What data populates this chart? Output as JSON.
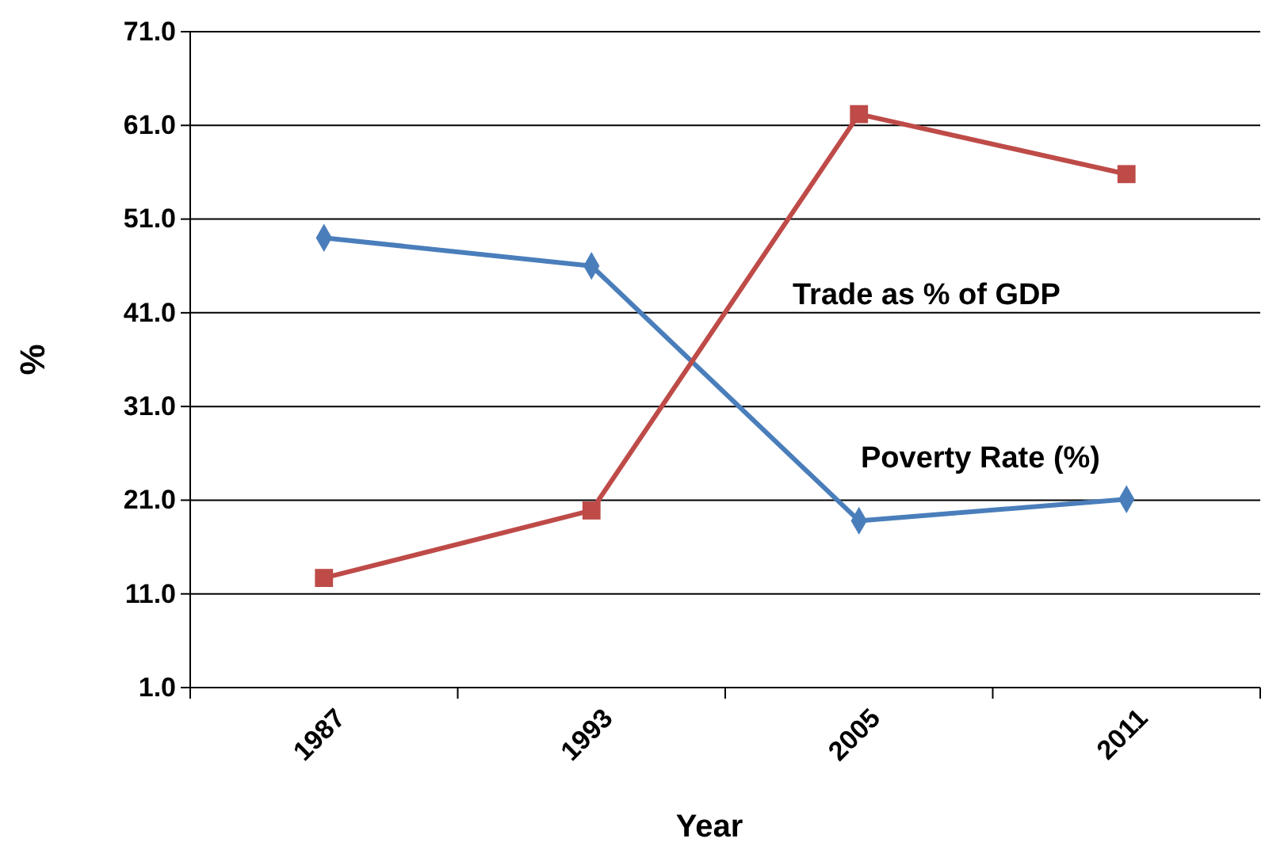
{
  "chart_data": {
    "type": "line",
    "xlabel": "Year",
    "ylabel": "%",
    "categories": [
      "1987",
      "1993",
      "2005",
      "2011"
    ],
    "ylim": [
      1,
      71
    ],
    "yticks": [
      {
        "value": 1,
        "label": "1.0"
      },
      {
        "value": 11,
        "label": "11.0"
      },
      {
        "value": 21,
        "label": "21.0"
      },
      {
        "value": 31,
        "label": "31.0"
      },
      {
        "value": 41,
        "label": "41.0"
      },
      {
        "value": 51,
        "label": "51.0"
      },
      {
        "value": 61,
        "label": "61.0"
      },
      {
        "value": 71,
        "label": "71.0"
      }
    ],
    "grid": "y",
    "legend": false,
    "series": [
      {
        "name": "Poverty Rate (%)",
        "color": "#4a7ebb",
        "marker": "diamond",
        "values": [
          49.0,
          46.0,
          18.8,
          21.1
        ]
      },
      {
        "name": "Trade as % of GDP",
        "color": "#be4b48",
        "marker": "square",
        "values": [
          12.7,
          19.9,
          62.2,
          55.8
        ]
      }
    ]
  }
}
